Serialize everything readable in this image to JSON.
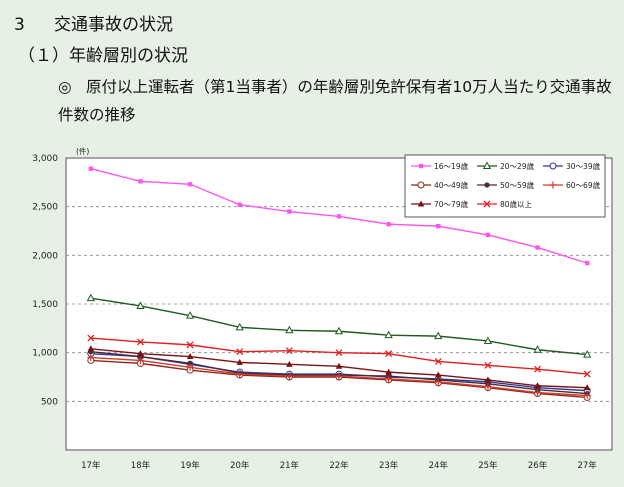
{
  "header": {
    "section_number": "3",
    "section_title": "交通事故の状況",
    "subsection": "（１）年齢層別の状況",
    "mark": "◎",
    "description": "原付以上運転者（第1当事者）の年齢層別免許保有者10万人当たり交通事故件数の推移"
  },
  "chart_data": {
    "type": "line",
    "unit_label": "(件)",
    "categories": [
      "17年",
      "18年",
      "19年",
      "20年",
      "21年",
      "22年",
      "23年",
      "24年",
      "25年",
      "26年",
      "27年"
    ],
    "ylim": [
      0,
      3000
    ],
    "yticks": [
      500,
      1000,
      1500,
      2000,
      2500,
      3000
    ],
    "ytick_labels": [
      "500",
      "1,000",
      "1,500",
      "2,000",
      "2,500",
      "3,000"
    ],
    "grid": "dashed horizontal lines",
    "legend_position": "top-right",
    "series": [
      {
        "name": "16～19歳",
        "color": "#ff55ee",
        "marker": "square",
        "values": [
          2890,
          2760,
          2730,
          2520,
          2450,
          2400,
          2320,
          2300,
          2210,
          2080,
          1920
        ]
      },
      {
        "name": "20～29歳",
        "color": "#1f5a1f",
        "marker": "triangle",
        "values": [
          1560,
          1480,
          1380,
          1260,
          1230,
          1220,
          1180,
          1170,
          1120,
          1030,
          980
        ]
      },
      {
        "name": "30～39歳",
        "color": "#2a3a9a",
        "marker": "circle-open",
        "values": [
          990,
          960,
          880,
          800,
          780,
          780,
          750,
          730,
          700,
          640,
          610
        ]
      },
      {
        "name": "40～49歳",
        "color": "#8b2a1e",
        "marker": "circle-open",
        "values": [
          920,
          890,
          820,
          770,
          750,
          750,
          720,
          690,
          640,
          580,
          540
        ]
      },
      {
        "name": "50～59歳",
        "color": "#4a2a3a",
        "marker": "circle",
        "values": [
          1010,
          960,
          890,
          790,
          770,
          770,
          760,
          720,
          680,
          620,
          580
        ]
      },
      {
        "name": "60～69歳",
        "color": "#d83a24",
        "marker": "plus",
        "values": [
          950,
          920,
          850,
          780,
          760,
          760,
          730,
          700,
          650,
          590,
          560
        ]
      },
      {
        "name": "70～79歳",
        "color": "#7a1212",
        "marker": "triangle-filled",
        "values": [
          1040,
          990,
          960,
          900,
          880,
          860,
          800,
          770,
          720,
          660,
          640
        ]
      },
      {
        "name": "80歳以上",
        "color": "#e02020",
        "marker": "x",
        "values": [
          1150,
          1110,
          1080,
          1010,
          1020,
          1000,
          990,
          910,
          870,
          830,
          780
        ]
      }
    ]
  }
}
